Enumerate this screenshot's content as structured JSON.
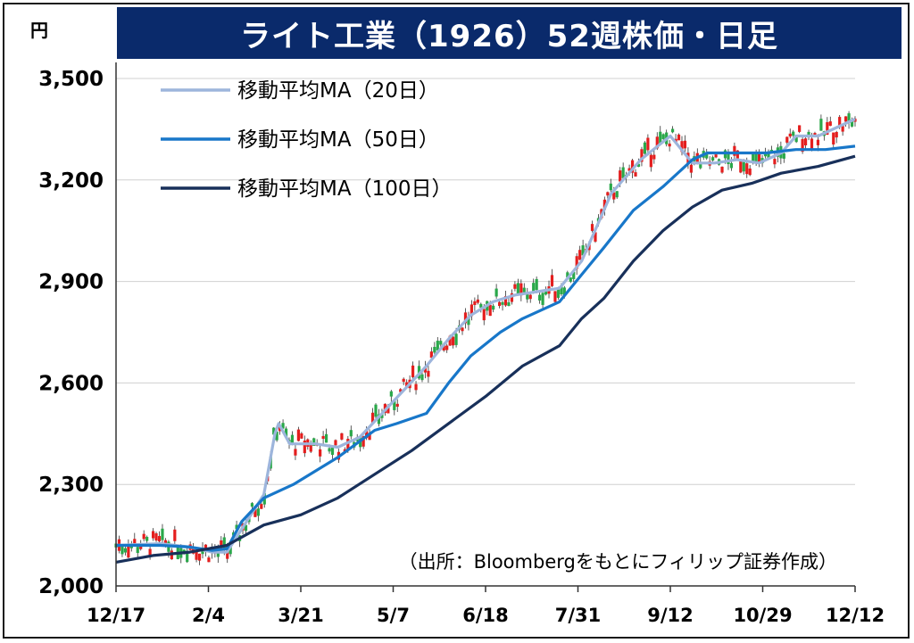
{
  "title": "ライト工業（1926）52週株価・日足",
  "unit": "円",
  "source_note": "（出所：Bloombergをもとにフィリップ証券作成）",
  "colors": {
    "title_bg": "#0a2a6b",
    "ma20": "#9db5dc",
    "ma50": "#1877c9",
    "ma100": "#18305a",
    "candle_up": "#2aa84a",
    "candle_down": "#e41e1e"
  },
  "chart_data": {
    "type": "line",
    "title": "ライト工業（1926）52週株価・日足",
    "ylabel": "円",
    "ylim": [
      2000,
      3500
    ],
    "yticks": [
      "2,000",
      "2,300",
      "2,600",
      "2,900",
      "3,200",
      "3,500"
    ],
    "ytick_values": [
      2000,
      2300,
      2600,
      2900,
      3200,
      3500
    ],
    "x_tick_labels": [
      "12/17",
      "2/4",
      "3/21",
      "5/7",
      "6/18",
      "7/31",
      "9/12",
      "10/29",
      "12/12"
    ],
    "grid": "horizontal",
    "legend_position": "top-left",
    "legend": [
      "移動平均MA（20日）",
      "移動平均MA（50日）",
      "移動平均MA（100日）"
    ],
    "series": [
      {
        "name": "移動平均MA（20日）",
        "color": "#9db5dc",
        "values": [
          [
            0,
            2120
          ],
          [
            0.06,
            2125
          ],
          [
            0.1,
            2115
          ],
          [
            0.13,
            2100
          ],
          [
            0.15,
            2100
          ],
          [
            0.2,
            2270
          ],
          [
            0.215,
            2450
          ],
          [
            0.22,
            2480
          ],
          [
            0.235,
            2420
          ],
          [
            0.27,
            2420
          ],
          [
            0.3,
            2410
          ],
          [
            0.33,
            2440
          ],
          [
            0.36,
            2510
          ],
          [
            0.39,
            2580
          ],
          [
            0.42,
            2650
          ],
          [
            0.45,
            2730
          ],
          [
            0.48,
            2800
          ],
          [
            0.51,
            2840
          ],
          [
            0.54,
            2860
          ],
          [
            0.57,
            2870
          ],
          [
            0.6,
            2880
          ],
          [
            0.63,
            2960
          ],
          [
            0.67,
            3160
          ],
          [
            0.71,
            3260
          ],
          [
            0.75,
            3330
          ],
          [
            0.78,
            3250
          ],
          [
            0.81,
            3250
          ],
          [
            0.84,
            3260
          ],
          [
            0.87,
            3250
          ],
          [
            0.9,
            3280
          ],
          [
            0.92,
            3330
          ],
          [
            0.95,
            3330
          ],
          [
            1,
            3380
          ]
        ]
      },
      {
        "name": "移動平均MA（50日）",
        "color": "#1877c9",
        "values": [
          [
            0,
            2120
          ],
          [
            0.06,
            2120
          ],
          [
            0.1,
            2115
          ],
          [
            0.13,
            2105
          ],
          [
            0.15,
            2110
          ],
          [
            0.17,
            2190
          ],
          [
            0.2,
            2260
          ],
          [
            0.24,
            2300
          ],
          [
            0.3,
            2380
          ],
          [
            0.35,
            2460
          ],
          [
            0.38,
            2480
          ],
          [
            0.42,
            2510
          ],
          [
            0.45,
            2600
          ],
          [
            0.48,
            2680
          ],
          [
            0.52,
            2750
          ],
          [
            0.55,
            2790
          ],
          [
            0.6,
            2840
          ],
          [
            0.63,
            2920
          ],
          [
            0.66,
            3000
          ],
          [
            0.7,
            3110
          ],
          [
            0.74,
            3180
          ],
          [
            0.78,
            3260
          ],
          [
            0.8,
            3280
          ],
          [
            0.84,
            3280
          ],
          [
            0.88,
            3280
          ],
          [
            0.92,
            3290
          ],
          [
            0.96,
            3290
          ],
          [
            1,
            3300
          ]
        ]
      },
      {
        "name": "移動平均MA（100日）",
        "color": "#18305a",
        "values": [
          [
            0,
            2070
          ],
          [
            0.05,
            2090
          ],
          [
            0.1,
            2100
          ],
          [
            0.15,
            2120
          ],
          [
            0.2,
            2180
          ],
          [
            0.25,
            2210
          ],
          [
            0.3,
            2260
          ],
          [
            0.35,
            2330
          ],
          [
            0.4,
            2400
          ],
          [
            0.45,
            2480
          ],
          [
            0.5,
            2560
          ],
          [
            0.55,
            2650
          ],
          [
            0.6,
            2710
          ],
          [
            0.63,
            2790
          ],
          [
            0.66,
            2850
          ],
          [
            0.7,
            2960
          ],
          [
            0.74,
            3050
          ],
          [
            0.78,
            3120
          ],
          [
            0.82,
            3170
          ],
          [
            0.86,
            3190
          ],
          [
            0.9,
            3220
          ],
          [
            0.95,
            3240
          ],
          [
            1,
            3270
          ]
        ]
      }
    ]
  }
}
